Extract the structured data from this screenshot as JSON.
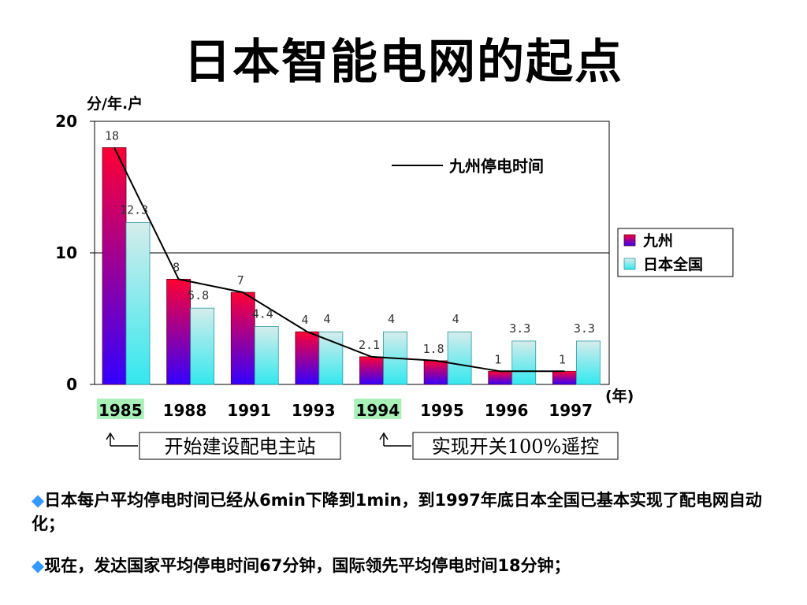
{
  "slide": {
    "title": "日本智能电网的起点",
    "bullets": [
      "日本每户平均停电时间已经从6min下降到1min，到1997年底日本全国已基本实现了配电网自动化；",
      "现在，发达国家平均停电时间67分钟，国际领先平均停电时间18分钟；"
    ],
    "bullet_marker": "◆"
  },
  "colors": {
    "kyushu_top": "#ff0033",
    "kyushu_bottom": "#3300ff",
    "japan_top": "#d6ecec",
    "japan_bottom": "#33e8ee",
    "line": "#000000",
    "highlight": "#a8f0b8"
  },
  "chart_data": {
    "type": "bar",
    "ylabel": "分/年.户",
    "xlabel": "(年)",
    "ylim": [
      0,
      20
    ],
    "yticks": [
      "0",
      "10",
      "20"
    ],
    "grid": "horizontal at 10",
    "categories": [
      "1985",
      "1988",
      "1991",
      "1993",
      "1994",
      "1995",
      "1996",
      "1997"
    ],
    "highlighted_categories": [
      "1985",
      "1994"
    ],
    "series": [
      {
        "name": "九州",
        "values": [
          18,
          8,
          7,
          4,
          2.1,
          1.8,
          1,
          1
        ],
        "labels": [
          "18",
          "8",
          "7",
          "4",
          "2.1",
          "1.8",
          "1",
          "1"
        ]
      },
      {
        "name": "日本全国",
        "values": [
          12.3,
          5.8,
          4.4,
          4,
          4,
          4,
          3.3,
          3.3
        ],
        "labels": [
          "12.3",
          "5.8",
          "4.4",
          "4",
          "4",
          "4",
          "3.3",
          "3.3"
        ]
      }
    ],
    "line_series": {
      "name": "九州停电时间",
      "values": [
        18,
        8,
        7,
        4,
        2.1,
        1.8,
        1,
        1
      ]
    },
    "legend": {
      "placement": "right",
      "entries": [
        "九州",
        "日本全国"
      ]
    },
    "annotations": [
      {
        "text": "开始建设配电主站",
        "at_category": "1985"
      },
      {
        "text": "实现开关100%遥控",
        "at_category": "1994"
      }
    ]
  }
}
